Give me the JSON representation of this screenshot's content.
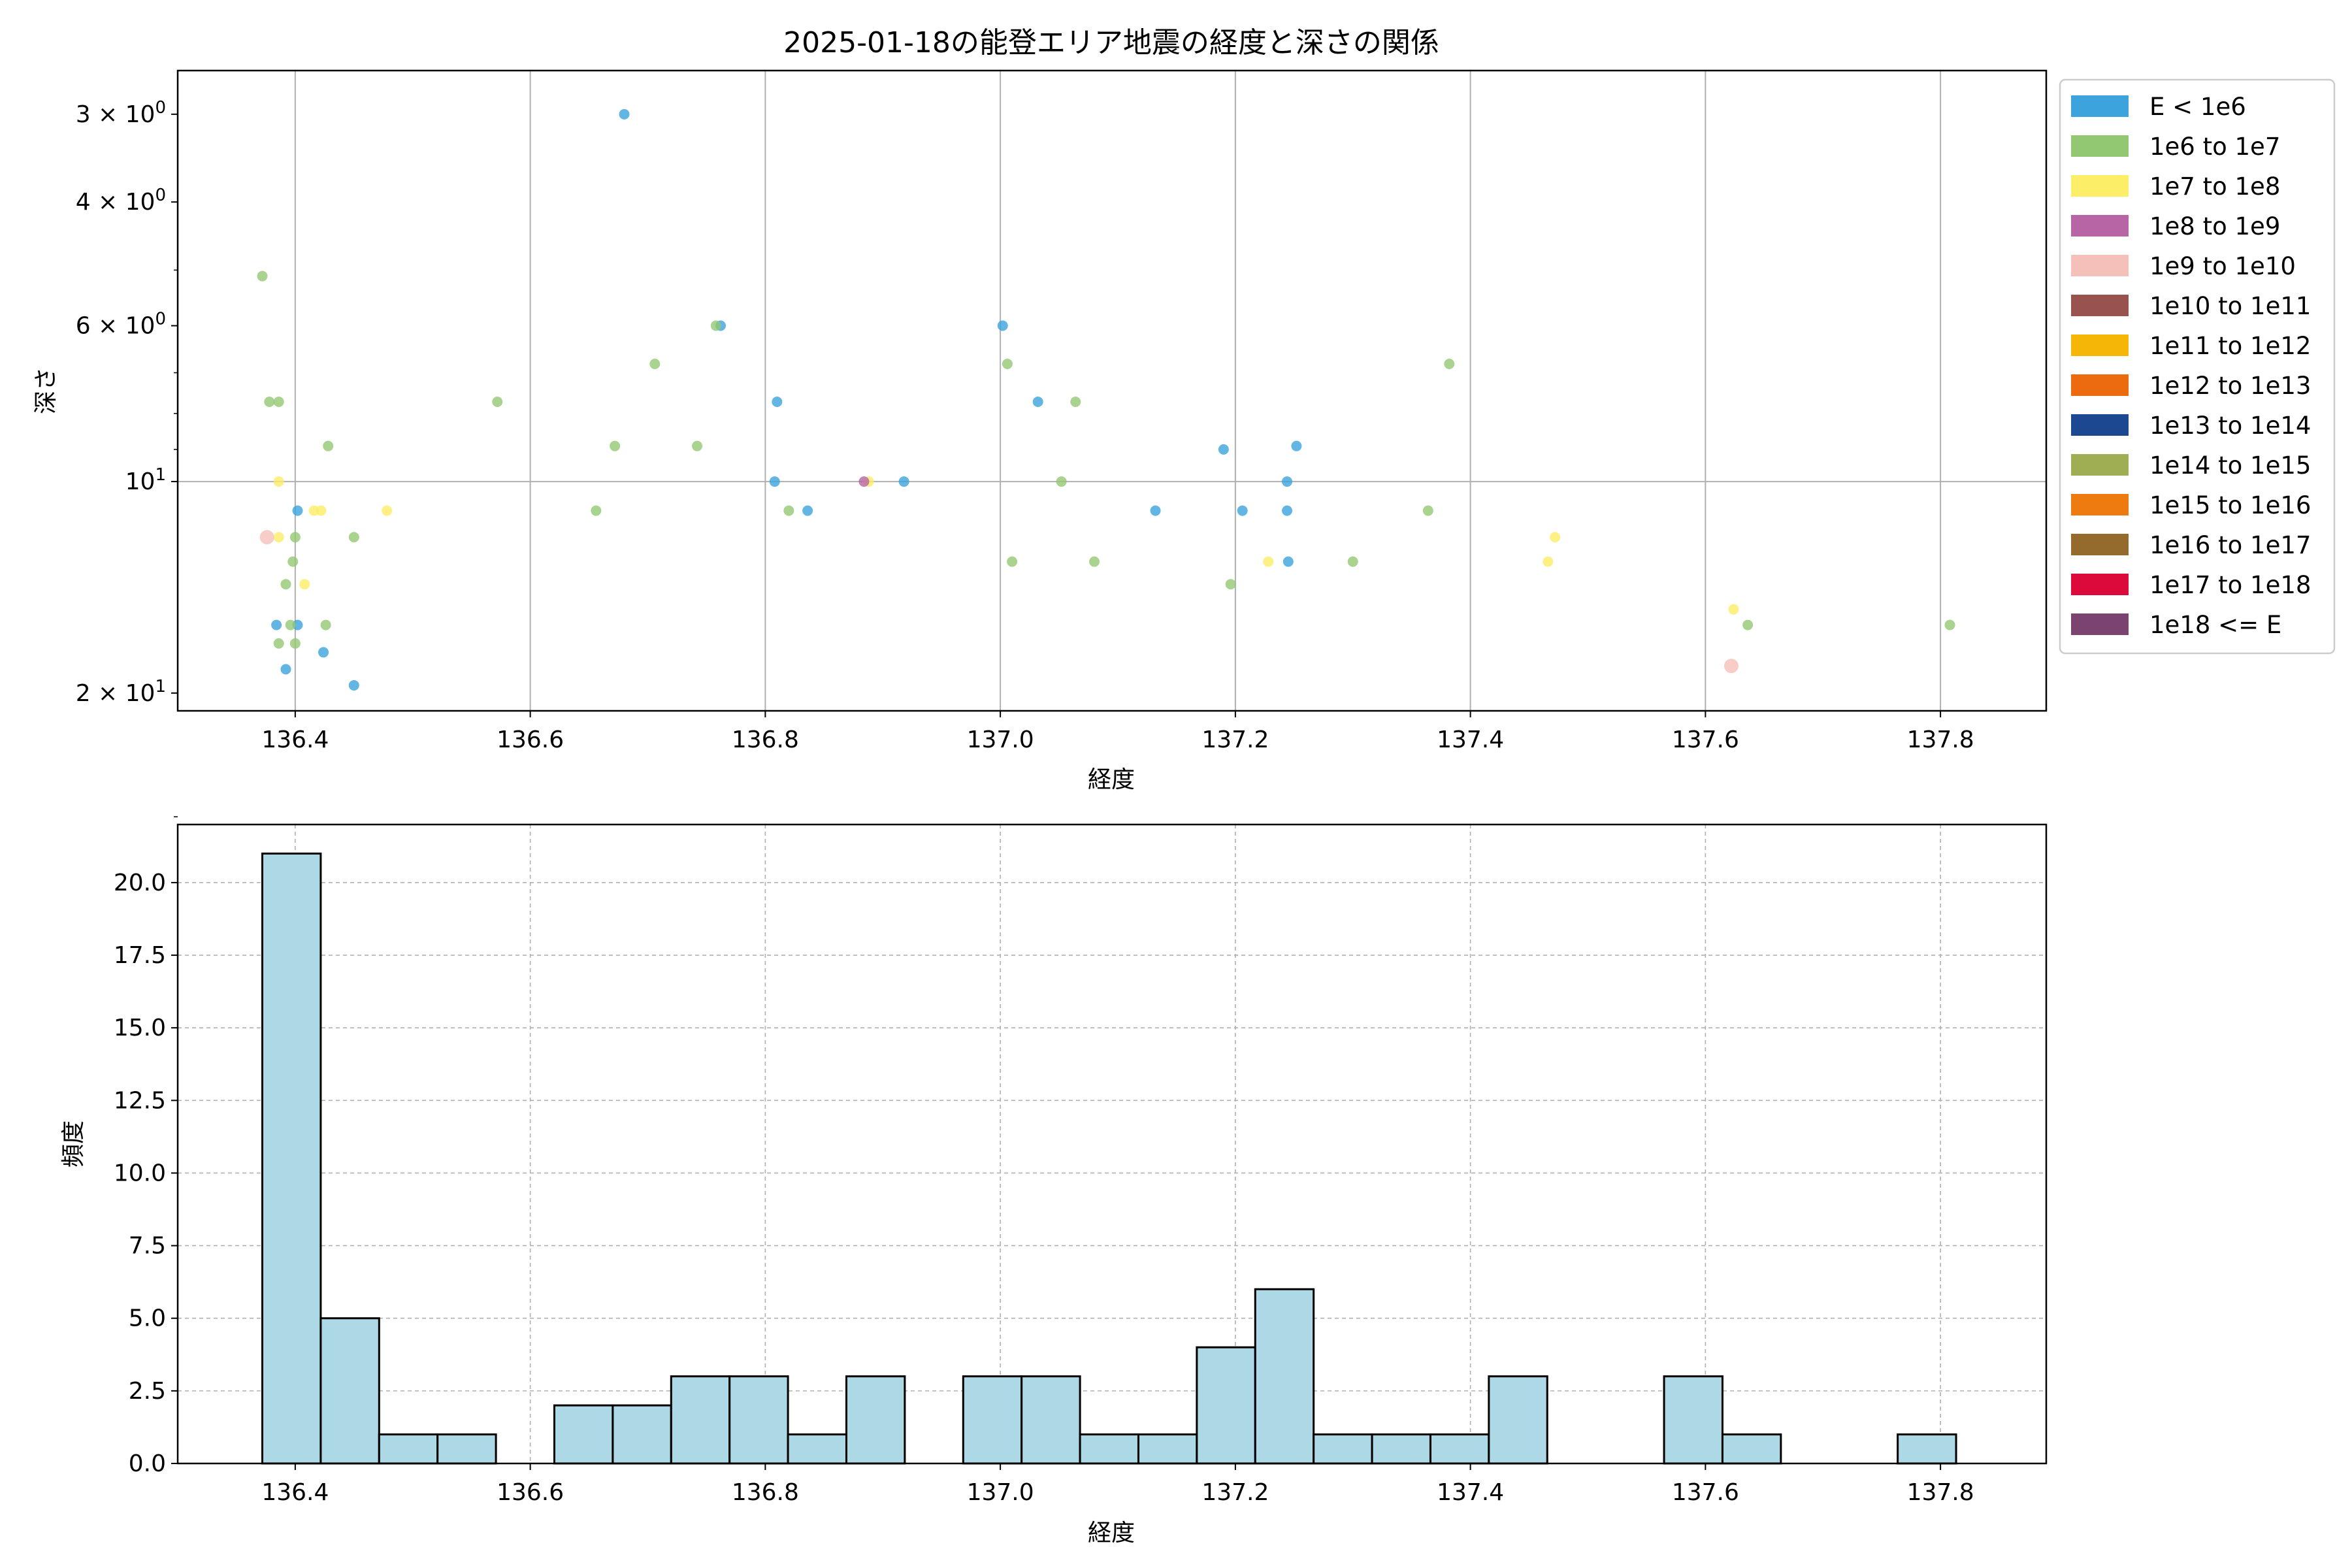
{
  "chart_data": [
    {
      "type": "scatter",
      "title": "2025-01-18の能登エリア地震の経度と深さの関係",
      "xlabel": "経度",
      "ylabel": "深さ",
      "xlim": [
        136.3,
        137.89
      ],
      "ylim": [
        21.2,
        2.6
      ],
      "yscale": "log",
      "y_inverted": true,
      "grid": true,
      "legend_position": "outside-right",
      "xticks": [
        136.4,
        136.6,
        136.8,
        137.0,
        137.2,
        137.4,
        137.6,
        137.8
      ],
      "xtick_labels": [
        "136.4",
        "136.6",
        "136.8",
        "137.0",
        "137.2",
        "137.4",
        "137.6",
        "137.8"
      ],
      "yticks": [
        {
          "value": 3,
          "mant": "3",
          "exp": "0"
        },
        {
          "value": 4,
          "mant": "4",
          "exp": "0"
        },
        {
          "value": 6,
          "mant": "6",
          "exp": "0"
        },
        {
          "value": 10,
          "mant": "",
          "exp": "1"
        },
        {
          "value": 20,
          "mant": "2",
          "exp": "1"
        }
      ],
      "legend": [
        {
          "label": "E < 1e6",
          "color": "#3ca3dc"
        },
        {
          "label": "1e6 to 1e7",
          "color": "#93c873"
        },
        {
          "label": "1e7 to 1e8",
          "color": "#fdee68"
        },
        {
          "label": "1e8 to 1e9",
          "color": "#b765a5"
        },
        {
          "label": "1e9 to 1e10",
          "color": "#f4c0b9"
        },
        {
          "label": "1e10 to 1e11",
          "color": "#98534f"
        },
        {
          "label": "1e11 to 1e12",
          "color": "#f6b608"
        },
        {
          "label": "1e12 to 1e13",
          "color": "#ec6b0f"
        },
        {
          "label": "1e13 to 1e14",
          "color": "#1c4891"
        },
        {
          "label": "1e14 to 1e15",
          "color": "#9fae52"
        },
        {
          "label": "1e15 to 1e16",
          "color": "#ee7b0f"
        },
        {
          "label": "1e16 to 1e17",
          "color": "#946b2d"
        },
        {
          "label": "1e17 to 1e18",
          "color": "#dc0a3b"
        },
        {
          "label": "1e18 <= E",
          "color": "#7b4470"
        }
      ],
      "series": [
        {
          "name": "E < 1e6",
          "color": "#3ca3dc",
          "points": [
            [
              136.68,
              3.0
            ],
            [
              136.762,
              6.0
            ],
            [
              137.002,
              6.0
            ],
            [
              136.81,
              7.7
            ],
            [
              137.032,
              7.7
            ],
            [
              137.19,
              9.0
            ],
            [
              137.252,
              8.9
            ],
            [
              136.808,
              10.0
            ],
            [
              136.918,
              10.0
            ],
            [
              137.244,
              10.0
            ],
            [
              136.402,
              11.0
            ],
            [
              136.836,
              11.0
            ],
            [
              137.132,
              11.0
            ],
            [
              137.206,
              11.0
            ],
            [
              137.244,
              11.0
            ],
            [
              137.245,
              13.0
            ],
            [
              136.384,
              16.0
            ],
            [
              136.402,
              16.0
            ],
            [
              136.424,
              17.5
            ],
            [
              136.392,
              18.5
            ],
            [
              136.45,
              19.5
            ]
          ]
        },
        {
          "name": "1e6 to 1e7",
          "color": "#93c873",
          "points": [
            [
              136.372,
              5.1
            ],
            [
              136.758,
              6.0
            ],
            [
              137.006,
              6.8
            ],
            [
              136.706,
              6.8
            ],
            [
              137.382,
              6.8
            ],
            [
              136.378,
              7.7
            ],
            [
              136.386,
              7.7
            ],
            [
              136.572,
              7.7
            ],
            [
              137.064,
              7.7
            ],
            [
              136.428,
              8.9
            ],
            [
              136.672,
              8.9
            ],
            [
              136.742,
              8.9
            ],
            [
              137.052,
              10.0
            ],
            [
              136.656,
              11.0
            ],
            [
              136.82,
              11.0
            ],
            [
              137.364,
              11.0
            ],
            [
              136.4,
              12.0
            ],
            [
              136.45,
              12.0
            ],
            [
              136.398,
              13.0
            ],
            [
              137.01,
              13.0
            ],
            [
              137.08,
              13.0
            ],
            [
              137.3,
              13.0
            ],
            [
              136.392,
              14.0
            ],
            [
              137.196,
              14.0
            ],
            [
              136.396,
              16.0
            ],
            [
              136.426,
              16.0
            ],
            [
              137.636,
              16.0
            ],
            [
              137.808,
              16.0
            ],
            [
              136.386,
              17.0
            ],
            [
              136.4,
              17.0
            ]
          ]
        },
        {
          "name": "1e7 to 1e8",
          "color": "#fdee68",
          "points": [
            [
              136.386,
              10.0
            ],
            [
              136.888,
              10.0
            ],
            [
              136.416,
              11.0
            ],
            [
              136.422,
              11.0
            ],
            [
              136.478,
              11.0
            ],
            [
              136.386,
              12.0
            ],
            [
              137.472,
              12.0
            ],
            [
              137.228,
              13.0
            ],
            [
              137.466,
              13.0
            ],
            [
              136.408,
              14.0
            ],
            [
              137.624,
              15.2
            ]
          ]
        },
        {
          "name": "1e8 to 1e9",
          "color": "#b765a5",
          "points": [
            [
              136.884,
              10.0
            ]
          ]
        },
        {
          "name": "1e9 to 1e10",
          "color": "#f4c0b9",
          "points": [
            [
              136.376,
              12.0
            ],
            [
              137.622,
              18.3
            ]
          ]
        }
      ]
    },
    {
      "type": "bar",
      "subtype": "histogram",
      "xlabel": "経度",
      "ylabel": "頻度",
      "xlim": [
        136.3,
        137.89
      ],
      "ylim": [
        0,
        22
      ],
      "grid": true,
      "xticks": [
        136.4,
        136.6,
        136.8,
        137.0,
        137.2,
        137.4,
        137.6,
        137.8
      ],
      "xtick_labels": [
        "136.4",
        "136.6",
        "136.8",
        "137.0",
        "137.2",
        "137.4",
        "137.6",
        "137.8"
      ],
      "yticks": [
        0,
        2.5,
        5,
        7.5,
        10,
        12.5,
        15,
        17.5,
        20
      ],
      "ytick_labels": [
        "0.0",
        "2.5",
        "5.0",
        "7.5",
        "10.0",
        "12.5",
        "15.0",
        "17.5",
        "20.0"
      ],
      "bar_color": "#add8e6",
      "edge_color": "#000000",
      "bin_start": 136.372,
      "bin_width": 0.0497,
      "counts": [
        21,
        5,
        1,
        1,
        0,
        2,
        2,
        3,
        3,
        1,
        3,
        0,
        3,
        3,
        1,
        1,
        4,
        6,
        1,
        1,
        1,
        3,
        0,
        0,
        3,
        1,
        0,
        0,
        1
      ]
    }
  ]
}
